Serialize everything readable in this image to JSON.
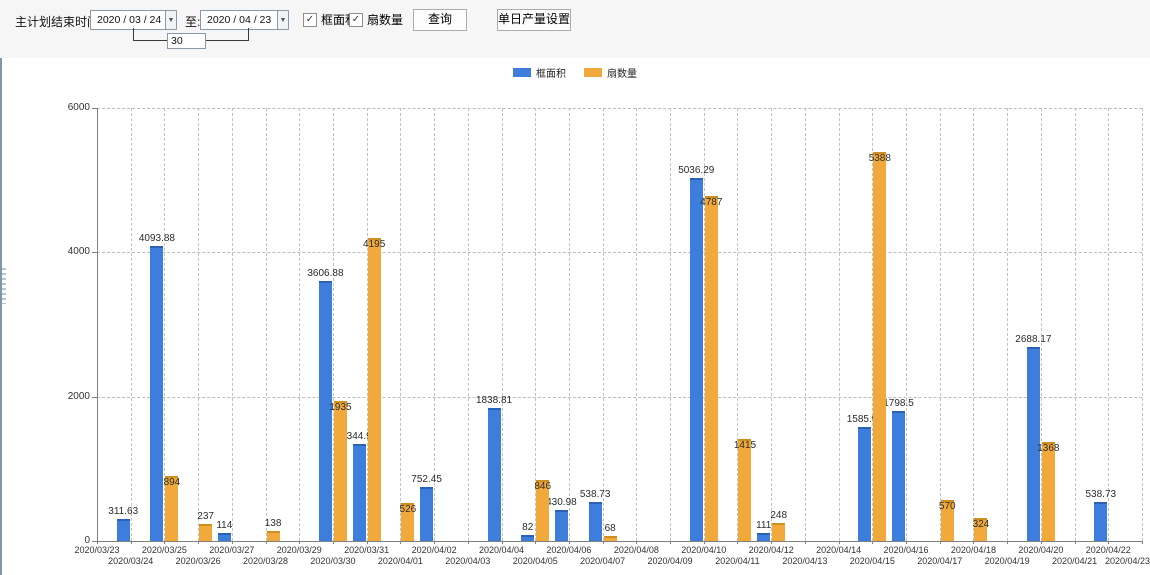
{
  "toolbar": {
    "end_time_label": "主计划结束时间:",
    "start_date": "2020 / 03 / 24",
    "to_label": "至:",
    "end_date": "2020 / 04 / 23",
    "span_days": "30",
    "checkboxes": [
      {
        "label": "框面积",
        "checked": true
      },
      {
        "label": "扇数量",
        "checked": true
      }
    ],
    "query_button": "查询",
    "daily_output_button": "单日产量设置"
  },
  "legend": {
    "items": [
      {
        "label": "框面积",
        "color": "#3D7EDC"
      },
      {
        "label": "扇数量",
        "color": "#F2A93B"
      }
    ]
  },
  "chart_data": {
    "type": "bar",
    "title": "",
    "xlabel": "",
    "ylabel": "",
    "ylim": [
      0,
      6000
    ],
    "yticks": [
      0,
      2000,
      4000,
      6000
    ],
    "grid": true,
    "legend_position": "top-center",
    "categories": [
      "2020/03/23",
      "2020/03/24",
      "2020/03/25",
      "2020/03/26",
      "2020/03/27",
      "2020/03/28",
      "2020/03/29",
      "2020/03/30",
      "2020/03/31",
      "2020/04/01",
      "2020/04/02",
      "2020/04/03",
      "2020/04/04",
      "2020/04/05",
      "2020/04/06",
      "2020/04/07",
      "2020/04/08",
      "2020/04/09",
      "2020/04/10",
      "2020/04/11",
      "2020/04/12",
      "2020/04/13",
      "2020/04/14",
      "2020/04/15",
      "2020/04/16",
      "2020/04/17",
      "2020/04/18",
      "2020/04/19",
      "2020/04/20",
      "2020/04/21",
      "2020/04/22",
      "2020/04/23"
    ],
    "series": [
      {
        "name": "框面积",
        "key": "frame-area",
        "color": "#3D7EDC",
        "edge": "#2a62b8",
        "values": [
          null,
          311.63,
          4093.88,
          null,
          114,
          null,
          null,
          3606.88,
          1344.95,
          null,
          752.45,
          null,
          1838.81,
          82,
          430.98,
          538.73,
          null,
          null,
          5036.29,
          null,
          111,
          null,
          null,
          1585.96,
          1798.5,
          null,
          null,
          null,
          2688.17,
          null,
          538.73,
          null
        ]
      },
      {
        "name": "扇数量",
        "key": "fan-count",
        "color": "#F2A93B",
        "edge": "#cf8f1f",
        "values": [
          null,
          null,
          894,
          237,
          null,
          138,
          null,
          1935,
          4195,
          526,
          null,
          null,
          null,
          846,
          null,
          68,
          null,
          null,
          4787,
          1415,
          248,
          null,
          null,
          5388,
          null,
          570,
          324,
          null,
          1368,
          null,
          null,
          null
        ]
      }
    ]
  }
}
